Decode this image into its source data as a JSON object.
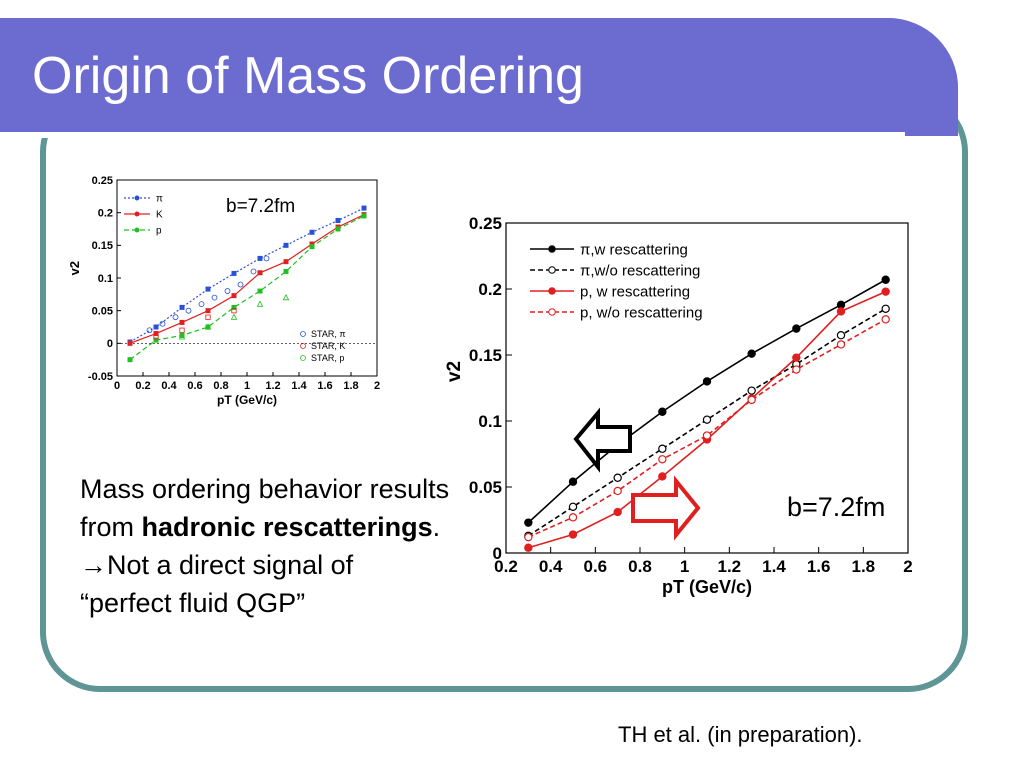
{
  "slide": {
    "title": "Origin of Mass Ordering",
    "body_line1": "Mass ordering behavior results from ",
    "body_bold1": "hadronic rescatterings",
    "body_end1": ".",
    "body_arrow": "→",
    "body_line2": "Not a direct signal of “perfect fluid QGP”",
    "citation": "TH et al. (in preparation).",
    "colors": {
      "title_bar": "#6b6bd0",
      "frame": "#5f9595"
    }
  },
  "chart_data": [
    {
      "type": "line",
      "label": "b=7.2fm",
      "xlabel": "pT (GeV/c)",
      "ylabel": "v2",
      "xlim": [
        0,
        2
      ],
      "ylim": [
        -0.05,
        0.25
      ],
      "xticks": [
        "0",
        "0.2",
        "0.4",
        "0.6",
        "0.8",
        "1",
        "1.2",
        "1.4",
        "1.6",
        "1.8",
        "2"
      ],
      "yticks": [
        "-0.05",
        "0",
        "0.05",
        "0.1",
        "0.15",
        "0.2",
        "0.25"
      ],
      "series": [
        {
          "name": "π",
          "color": "#2a4fd8",
          "style": "dotted",
          "x": [
            0.1,
            0.3,
            0.5,
            0.7,
            0.9,
            1.1,
            1.3,
            1.5,
            1.7,
            1.9
          ],
          "y": [
            0.002,
            0.025,
            0.055,
            0.083,
            0.107,
            0.13,
            0.15,
            0.17,
            0.188,
            0.207
          ]
        },
        {
          "name": "K",
          "color": "#e02020",
          "style": "solid",
          "x": [
            0.1,
            0.3,
            0.5,
            0.7,
            0.9,
            1.1,
            1.3,
            1.5,
            1.7,
            1.9
          ],
          "y": [
            0.0,
            0.015,
            0.032,
            0.05,
            0.073,
            0.108,
            0.125,
            0.152,
            0.178,
            0.197
          ]
        },
        {
          "name": "p",
          "color": "#20c020",
          "style": "dashed",
          "x": [
            0.1,
            0.3,
            0.5,
            0.7,
            0.9,
            1.1,
            1.3,
            1.5,
            1.7,
            1.9
          ],
          "y": [
            -0.025,
            0.005,
            0.012,
            0.025,
            0.055,
            0.08,
            0.11,
            0.148,
            0.175,
            0.195
          ]
        }
      ],
      "star_points": [
        {
          "name": "STAR, π",
          "color": "#2a4fd8",
          "marker": "circle",
          "x": [
            0.25,
            0.35,
            0.45,
            0.55,
            0.65,
            0.75,
            0.85,
            0.95,
            1.05,
            1.15
          ],
          "y": [
            0.02,
            0.03,
            0.04,
            0.05,
            0.06,
            0.07,
            0.08,
            0.09,
            0.11,
            0.13
          ]
        },
        {
          "name": "STAR, K",
          "color": "#e02020",
          "marker": "square",
          "x": [
            0.3,
            0.5,
            0.7,
            0.9
          ],
          "y": [
            0.01,
            0.02,
            0.04,
            0.05
          ]
        },
        {
          "name": "STAR, p",
          "color": "#20c020",
          "marker": "triangle",
          "x": [
            0.5,
            0.7,
            0.9,
            1.1,
            1.3
          ],
          "y": [
            0.01,
            0.025,
            0.04,
            0.06,
            0.07
          ]
        }
      ]
    },
    {
      "type": "line",
      "label": "b=7.2fm",
      "xlabel": "pT (GeV/c)",
      "ylabel": "v2",
      "xlim": [
        0.2,
        2
      ],
      "ylim": [
        0,
        0.25
      ],
      "xticks": [
        "0.2",
        "0.4",
        "0.6",
        "0.8",
        "1",
        "1.2",
        "1.4",
        "1.6",
        "1.8",
        "2"
      ],
      "yticks": [
        "0",
        "0.05",
        "0.1",
        "0.15",
        "0.2",
        "0.25"
      ],
      "series": [
        {
          "name": "π,w rescattering",
          "color": "#000000",
          "style": "solid",
          "marker": "filled",
          "x": [
            0.3,
            0.5,
            0.7,
            0.9,
            1.1,
            1.3,
            1.5,
            1.7,
            1.9
          ],
          "y": [
            0.023,
            0.054,
            0.082,
            0.107,
            0.13,
            0.151,
            0.17,
            0.188,
            0.207
          ]
        },
        {
          "name": "π,w/o rescattering",
          "color": "#000000",
          "style": "dashed",
          "marker": "open",
          "x": [
            0.3,
            0.5,
            0.7,
            0.9,
            1.1,
            1.3,
            1.5,
            1.7,
            1.9
          ],
          "y": [
            0.013,
            0.035,
            0.057,
            0.079,
            0.101,
            0.123,
            0.143,
            0.165,
            0.185
          ]
        },
        {
          "name": "p, w rescattering",
          "color": "#e02020",
          "style": "solid",
          "marker": "filled",
          "x": [
            0.3,
            0.5,
            0.7,
            0.9,
            1.1,
            1.3,
            1.5,
            1.7,
            1.9
          ],
          "y": [
            0.004,
            0.014,
            0.031,
            0.058,
            0.086,
            0.117,
            0.148,
            0.183,
            0.198
          ]
        },
        {
          "name": "p, w/o rescattering",
          "color": "#e02020",
          "style": "dashed",
          "marker": "open",
          "x": [
            0.3,
            0.5,
            0.7,
            0.9,
            1.1,
            1.3,
            1.5,
            1.7,
            1.9
          ],
          "y": [
            0.012,
            0.027,
            0.047,
            0.071,
            0.089,
            0.116,
            0.139,
            0.158,
            0.177
          ]
        }
      ]
    }
  ]
}
